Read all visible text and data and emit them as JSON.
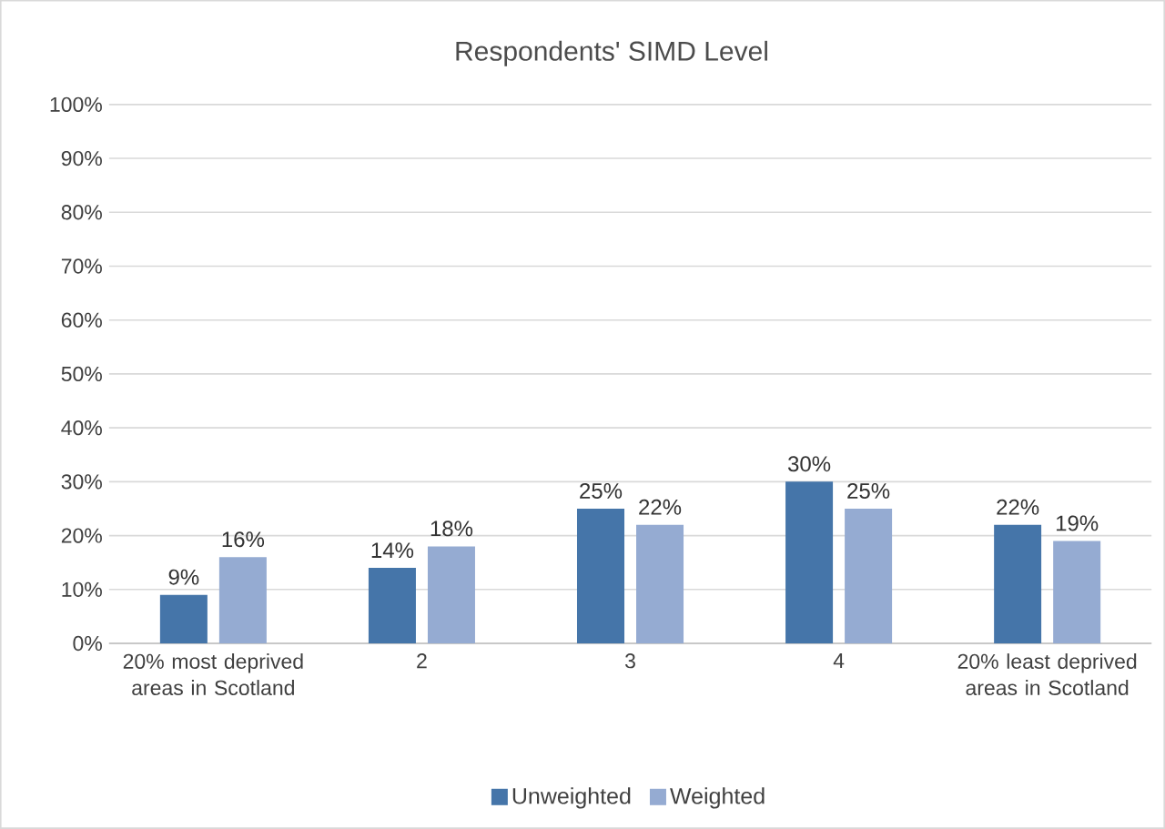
{
  "chart_data": {
    "type": "bar",
    "title": "Respondents' SIMD Level",
    "categories": [
      "20% most deprived areas in Scotland",
      "2",
      "3",
      "4",
      "20% least deprived areas in Scotland"
    ],
    "series": [
      {
        "name": "Unweighted",
        "color": "#4575a9",
        "values": [
          9,
          14,
          25,
          30,
          22
        ],
        "value_labels": [
          "9%",
          "14%",
          "25%",
          "30%",
          "22%"
        ]
      },
      {
        "name": "Weighted",
        "color": "#95abd2",
        "values": [
          16,
          18,
          22,
          25,
          19
        ],
        "value_labels": [
          "16%",
          "18%",
          "22%",
          "25%",
          "19%"
        ]
      }
    ],
    "ylim": [
      0,
      100
    ],
    "yticks": [
      {
        "value": 0,
        "label": "0%"
      },
      {
        "value": 10,
        "label": "10%"
      },
      {
        "value": 20,
        "label": "20%"
      },
      {
        "value": 30,
        "label": "30%"
      },
      {
        "value": 40,
        "label": "40%"
      },
      {
        "value": 50,
        "label": "50%"
      },
      {
        "value": 60,
        "label": "60%"
      },
      {
        "value": 70,
        "label": "70%"
      },
      {
        "value": 80,
        "label": "80%"
      },
      {
        "value": 90,
        "label": "90%"
      },
      {
        "value": 100,
        "label": "100%"
      }
    ],
    "grid": "y",
    "legend": "bottom"
  }
}
